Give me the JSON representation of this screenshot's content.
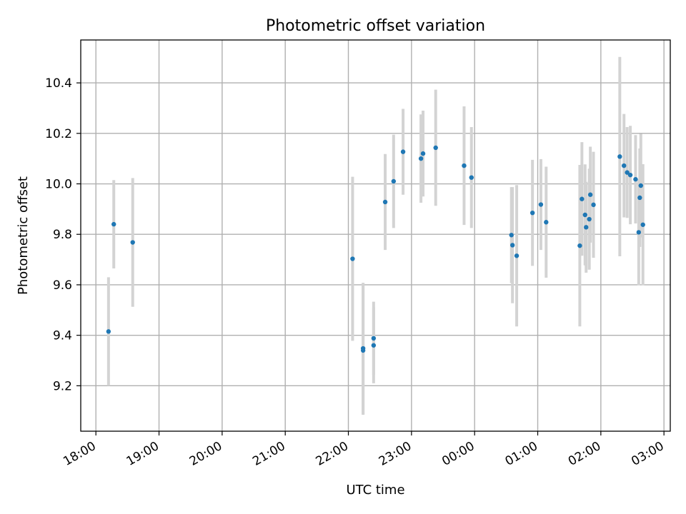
{
  "chart_data": {
    "type": "scatter",
    "title": "Photometric offset variation",
    "xlabel": "UTC time",
    "ylabel": "Photometric offset",
    "x_axis": {
      "kind": "time",
      "range_hours": [
        -0.24,
        9.1
      ],
      "ticks": [
        {
          "hour": 0,
          "label": "18:00"
        },
        {
          "hour": 1,
          "label": "19:00"
        },
        {
          "hour": 2,
          "label": "20:00"
        },
        {
          "hour": 3,
          "label": "21:00"
        },
        {
          "hour": 4,
          "label": "22:00"
        },
        {
          "hour": 5,
          "label": "23:00"
        },
        {
          "hour": 6,
          "label": "00:00"
        },
        {
          "hour": 7,
          "label": "01:00"
        },
        {
          "hour": 8,
          "label": "02:00"
        },
        {
          "hour": 9,
          "label": "03:00"
        }
      ]
    },
    "y_axis": {
      "range": [
        9.02,
        10.57
      ],
      "ticks": [
        {
          "value": 9.2,
          "label": "9.2"
        },
        {
          "value": 9.4,
          "label": "9.4"
        },
        {
          "value": 9.6,
          "label": "9.6"
        },
        {
          "value": 9.8,
          "label": "9.8"
        },
        {
          "value": 10.0,
          "label": "10.0"
        },
        {
          "value": 10.2,
          "label": "10.2"
        },
        {
          "value": 10.4,
          "label": "10.4"
        }
      ]
    },
    "grid": true,
    "colors": {
      "point": "#1f77b4",
      "errorbar": "#d3d3d3"
    },
    "points": [
      {
        "t": "18:12",
        "y": 9.415,
        "err": 0.215
      },
      {
        "t": "18:17",
        "y": 9.84,
        "err": 0.175
      },
      {
        "t": "18:35",
        "y": 9.768,
        "err": 0.255
      },
      {
        "t": "22:04",
        "y": 9.703,
        "err": 0.325
      },
      {
        "t": "22:14",
        "y": 9.348,
        "err": 0.26
      },
      {
        "t": "22:14",
        "y": 9.34,
        "err": 0.255
      },
      {
        "t": "22:24",
        "y": 9.388,
        "err": 0.145
      },
      {
        "t": "22:24",
        "y": 9.36,
        "err": 0.15
      },
      {
        "t": "22:35",
        "y": 9.928,
        "err": 0.19
      },
      {
        "t": "22:43",
        "y": 10.01,
        "err": 0.185
      },
      {
        "t": "22:52",
        "y": 10.127,
        "err": 0.17
      },
      {
        "t": "23:09",
        "y": 10.1,
        "err": 0.175
      },
      {
        "t": "23:11",
        "y": 10.12,
        "err": 0.17
      },
      {
        "t": "23:23",
        "y": 10.143,
        "err": 0.23
      },
      {
        "t": "23:50",
        "y": 10.072,
        "err": 0.235
      },
      {
        "t": "23:57",
        "y": 10.025,
        "err": 0.2
      },
      {
        "t": "00:35",
        "y": 9.797,
        "err": 0.19
      },
      {
        "t": "00:36",
        "y": 9.757,
        "err": 0.23
      },
      {
        "t": "00:40",
        "y": 9.715,
        "err": 0.28
      },
      {
        "t": "00:55",
        "y": 9.885,
        "err": 0.21
      },
      {
        "t": "01:03",
        "y": 9.918,
        "err": 0.18
      },
      {
        "t": "01:08",
        "y": 9.848,
        "err": 0.22
      },
      {
        "t": "01:40",
        "y": 9.755,
        "err": 0.32
      },
      {
        "t": "01:42",
        "y": 9.94,
        "err": 0.225
      },
      {
        "t": "01:45",
        "y": 9.877,
        "err": 0.2
      },
      {
        "t": "01:46",
        "y": 9.828,
        "err": 0.18
      },
      {
        "t": "01:49",
        "y": 9.86,
        "err": 0.2
      },
      {
        "t": "01:50",
        "y": 9.957,
        "err": 0.19
      },
      {
        "t": "01:53",
        "y": 9.917,
        "err": 0.21
      },
      {
        "t": "02:18",
        "y": 10.108,
        "err": 0.395
      },
      {
        "t": "02:22",
        "y": 10.072,
        "err": 0.205
      },
      {
        "t": "02:25",
        "y": 10.045,
        "err": 0.18
      },
      {
        "t": "02:28",
        "y": 10.035,
        "err": 0.195
      },
      {
        "t": "02:33",
        "y": 10.018,
        "err": 0.175
      },
      {
        "t": "02:36",
        "y": 9.808,
        "err": 0.21
      },
      {
        "t": "02:37",
        "y": 9.945,
        "err": 0.195
      },
      {
        "t": "02:38",
        "y": 9.993,
        "err": 0.205
      },
      {
        "t": "02:40",
        "y": 9.838,
        "err": 0.24
      }
    ]
  }
}
